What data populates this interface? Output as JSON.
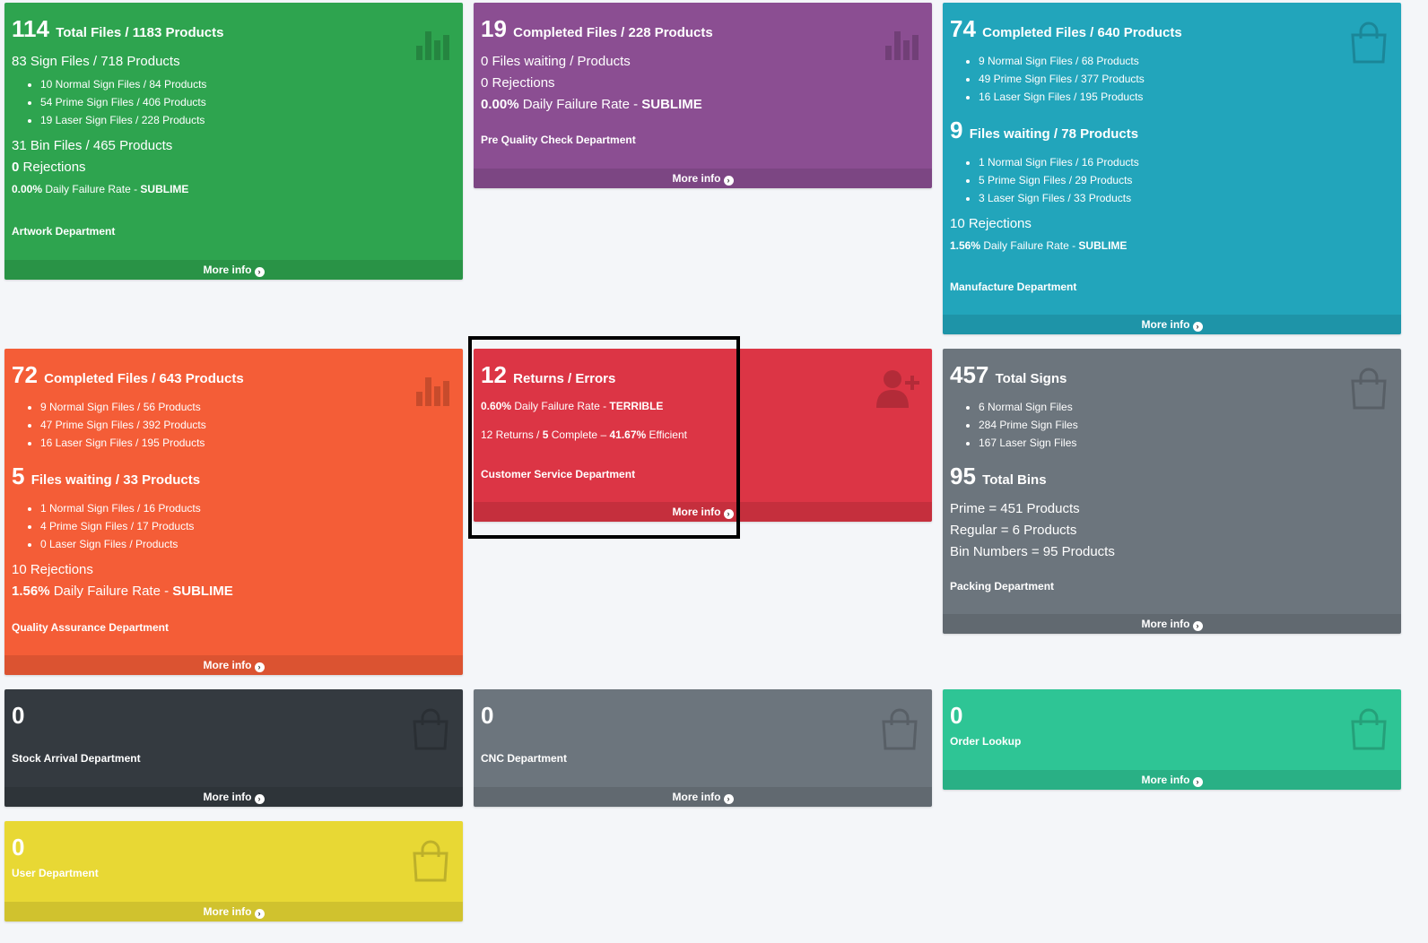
{
  "artwork": {
    "total_num": "114",
    "total_text": "Total Files / 1183 Products",
    "sign_files": "83 Sign Files / 718 Products",
    "sign_items": [
      "10 Normal Sign Files / 84 Products",
      "54 Prime Sign Files / 406 Products",
      "19 Laser Sign Files / 228 Products"
    ],
    "bin_files": "31 Bin Files / 465 Products",
    "rejections_num": "0",
    "rejections_text": "Rejections",
    "failure_pct": "0.00%",
    "failure_text": "Daily Failure Rate -",
    "failure_status": "SUBLIME",
    "dept": "Artwork Department",
    "more": "More info",
    "color": "#2ea44f"
  },
  "prequality": {
    "num": "19",
    "text": "Completed Files / 228 Products",
    "waiting": "0 Files waiting / Products",
    "rejections": "0 Rejections",
    "failure_pct": "0.00%",
    "failure_text": "Daily Failure Rate -",
    "failure_status": "SUBLIME",
    "dept": "Pre Quality Check Department",
    "more": "More info",
    "color": "#8b4e92"
  },
  "manufacture": {
    "num": "74",
    "text": "Completed Files / 640 Products",
    "items": [
      "9 Normal Sign Files / 68 Products",
      "49 Prime Sign Files / 377 Products",
      "16 Laser Sign Files / 195 Products"
    ],
    "waiting_num": "9",
    "waiting_text": "Files waiting / 78 Products",
    "waiting_items": [
      "1 Normal Sign Files / 16 Products",
      "5 Prime Sign Files / 29 Products",
      "3 Laser Sign Files / 33 Products"
    ],
    "rejections": "10 Rejections",
    "failure_pct": "1.56%",
    "failure_text": "Daily Failure Rate -",
    "failure_status": "SUBLIME",
    "dept": "Manufacture Department",
    "more": "More info",
    "color": "#22a5bb"
  },
  "quality": {
    "num": "72",
    "text": "Completed Files / 643 Products",
    "items": [
      "9 Normal Sign Files / 56 Products",
      "47 Prime Sign Files / 392 Products",
      "16 Laser Sign Files / 195 Products"
    ],
    "waiting_num": "5",
    "waiting_text": "Files waiting / 33 Products",
    "waiting_items": [
      "1 Normal Sign Files / 16 Products",
      "4 Prime Sign Files / 17 Products",
      "0 Laser Sign Files / Products"
    ],
    "rejections": "10 Rejections",
    "failure_pct": "1.56%",
    "failure_text": "Daily Failure Rate -",
    "failure_status": "SUBLIME",
    "dept": "Quality Assurance Department",
    "more": "More info",
    "color": "#f45d37"
  },
  "customer": {
    "num": "12",
    "text": "Returns / Errors",
    "failure_pct": "0.60%",
    "failure_text": "Daily Failure Rate -",
    "failure_status": "TERRIBLE",
    "returns_a": "12 Returns /",
    "returns_b": "5",
    "returns_c": "Complete –",
    "returns_d": "41.67%",
    "returns_e": "Efficient",
    "dept": "Customer Service Department",
    "more": "More info",
    "color": "#dc3545"
  },
  "packing": {
    "num": "457",
    "text": "Total Signs",
    "items": [
      "6 Normal Sign Files",
      "284 Prime Sign Files",
      "167 Laser Sign Files"
    ],
    "bins_num": "95",
    "bins_text": "Total Bins",
    "prime": "Prime = 451 Products",
    "regular": "Regular = 6 Products",
    "binnums": "Bin Numbers = 95 Products",
    "dept": "Packing Department",
    "more": "More info",
    "color": "#6c757d"
  },
  "stock": {
    "num": "0",
    "dept": "Stock Arrival Department",
    "more": "More info",
    "color": "#343a40"
  },
  "cnc": {
    "num": "0",
    "dept": "CNC Department",
    "more": "More info",
    "color": "#6c757d"
  },
  "order": {
    "num": "0",
    "dept": "Order Lookup",
    "more": "More info",
    "color": "#2ec595"
  },
  "user": {
    "num": "0",
    "dept": "User Department",
    "more": "More info",
    "color": "#e8d834"
  }
}
